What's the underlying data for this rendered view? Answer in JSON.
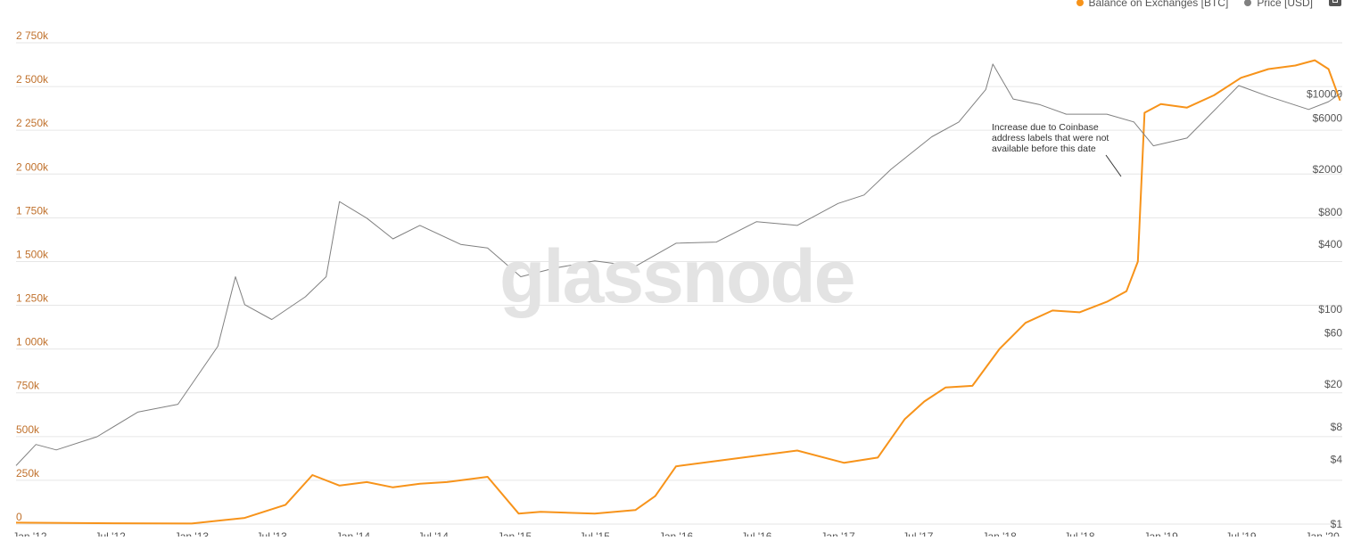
{
  "legend": {
    "series1": "Balance on Exchanges [BTC]",
    "series2": "Price [USD]"
  },
  "watermark": "glassnode",
  "annotation": "Increase due to Coinbase address labels that were not available before this date",
  "colors": {
    "balance": "#f7931a",
    "price": "#808080",
    "grid": "#e6e6e6",
    "left_axis_text": "#c0712c"
  },
  "chart_data": {
    "type": "line",
    "x_range": [
      "2011-12-01",
      "2020-02-15"
    ],
    "y_left": {
      "label": "",
      "ticks": [
        0,
        250,
        500,
        750,
        1000,
        1250,
        1500,
        1750,
        2000,
        2250,
        2500,
        2750
      ],
      "tick_labels": [
        "0",
        "250k",
        "500k",
        "750k",
        "1 000k",
        "1 250k",
        "1 500k",
        "1 750k",
        "2 000k",
        "2 250k",
        "2 500k",
        "2 750k"
      ],
      "range": [
        0,
        2750
      ],
      "unit": "k BTC"
    },
    "y_right": {
      "scale": "log",
      "tick_labels": [
        "$1",
        "$4",
        "$8",
        "$20",
        "$60",
        "$100",
        "$400",
        "$800",
        "$2000",
        "$6000",
        "$10000"
      ],
      "ticks": [
        1,
        4,
        8,
        20,
        60,
        100,
        400,
        800,
        2000,
        6000,
        10000
      ],
      "range": [
        1,
        30000
      ]
    },
    "x_tick_labels": [
      "Jan '12",
      "Jul '12",
      "Jan '13",
      "Jul '13",
      "Jan '14",
      "Jul '14",
      "Jan '15",
      "Jul '15",
      "Jan '16",
      "Jul '16",
      "Jan '17",
      "Jul '17",
      "Jan '18",
      "Jul '18",
      "Jan '19",
      "Jul '19",
      "Jan '20"
    ],
    "x_ticks": [
      "2012-01-01",
      "2012-07-01",
      "2013-01-01",
      "2013-07-01",
      "2014-01-01",
      "2014-07-01",
      "2015-01-01",
      "2015-07-01",
      "2016-01-01",
      "2016-07-01",
      "2017-01-01",
      "2017-07-01",
      "2018-01-01",
      "2018-07-01",
      "2019-01-01",
      "2019-07-01",
      "2020-01-01"
    ],
    "series": [
      {
        "name": "Balance on Exchanges [BTC]",
        "axis": "left",
        "x": [
          "2011-12-01",
          "2012-06-01",
          "2013-01-01",
          "2013-05-01",
          "2013-08-01",
          "2013-10-01",
          "2013-12-01",
          "2014-02-01",
          "2014-04-01",
          "2014-06-01",
          "2014-08-01",
          "2014-11-01",
          "2015-01-10",
          "2015-03-01",
          "2015-07-01",
          "2015-10-01",
          "2015-11-15",
          "2016-01-01",
          "2016-04-01",
          "2016-07-01",
          "2016-10-01",
          "2017-01-15",
          "2017-04-01",
          "2017-06-01",
          "2017-07-15",
          "2017-09-01",
          "2017-11-01",
          "2018-01-01",
          "2018-03-01",
          "2018-05-01",
          "2018-07-01",
          "2018-09-01",
          "2018-10-15",
          "2018-11-10",
          "2018-11-25",
          "2019-01-01",
          "2019-03-01",
          "2019-05-01",
          "2019-07-01",
          "2019-09-01",
          "2019-11-01",
          "2019-12-15",
          "2020-01-15",
          "2020-02-10"
        ],
        "values": [
          8,
          5,
          3,
          35,
          110,
          280,
          220,
          240,
          210,
          230,
          240,
          270,
          60,
          70,
          60,
          80,
          160,
          330,
          360,
          390,
          420,
          350,
          380,
          600,
          700,
          780,
          790,
          1000,
          1150,
          1220,
          1210,
          1270,
          1330,
          1500,
          2350,
          2400,
          2380,
          2450,
          2550,
          2600,
          2620,
          2650,
          2600,
          2420
        ]
      },
      {
        "name": "Price [USD]",
        "axis": "right",
        "x": [
          "2011-12-01",
          "2012-01-15",
          "2012-03-01",
          "2012-06-01",
          "2012-09-01",
          "2012-12-01",
          "2013-03-01",
          "2013-04-10",
          "2013-05-01",
          "2013-07-01",
          "2013-09-15",
          "2013-11-01",
          "2013-12-01",
          "2014-02-01",
          "2014-04-01",
          "2014-06-01",
          "2014-09-01",
          "2014-11-01",
          "2015-01-15",
          "2015-04-01",
          "2015-07-01",
          "2015-10-01",
          "2016-01-01",
          "2016-04-01",
          "2016-07-01",
          "2016-10-01",
          "2017-01-01",
          "2017-03-01",
          "2017-05-01",
          "2017-08-01",
          "2017-10-01",
          "2017-12-01",
          "2017-12-17",
          "2018-02-01",
          "2018-04-01",
          "2018-06-01",
          "2018-09-01",
          "2018-11-01",
          "2018-12-15",
          "2019-03-01",
          "2019-05-15",
          "2019-06-26",
          "2019-09-01",
          "2019-12-01",
          "2020-01-15",
          "2020-02-12"
        ],
        "values": [
          3.5,
          5.5,
          4.9,
          6.5,
          11,
          13,
          45,
          200,
          110,
          80,
          130,
          200,
          1000,
          700,
          450,
          600,
          400,
          370,
          200,
          240,
          280,
          250,
          410,
          420,
          650,
          600,
          960,
          1150,
          2000,
          4000,
          5500,
          11000,
          19000,
          9000,
          8000,
          6500,
          6500,
          5500,
          3300,
          3900,
          8000,
          12000,
          9500,
          7200,
          8500,
          10200
        ]
      }
    ]
  }
}
